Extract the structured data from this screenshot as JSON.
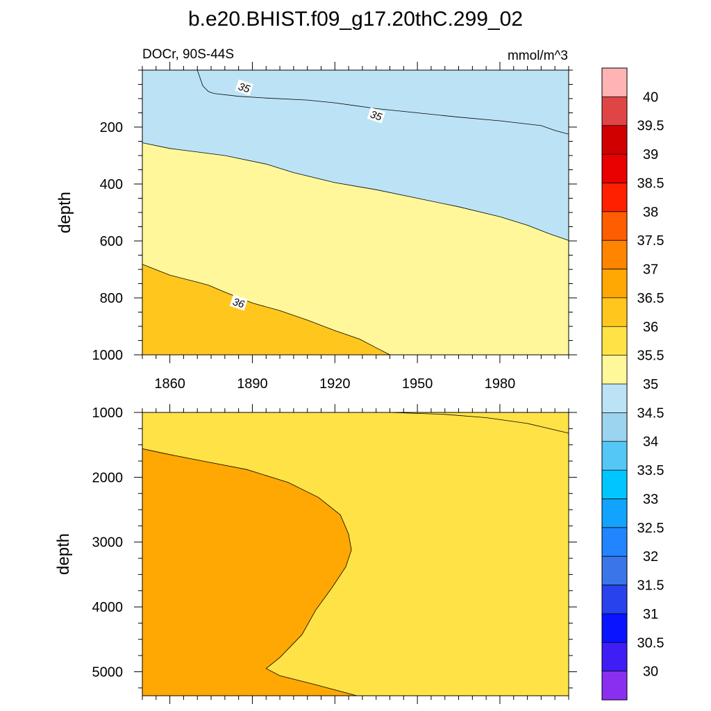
{
  "figure": {
    "title": "b.e20.BHIST.f09_g17.20thC.299_02",
    "left_subtitle": "DOCr, 90S-44S",
    "right_subtitle": "mmol/m^3"
  },
  "chart_data": [
    {
      "type": "heatmap",
      "panel": "upper",
      "title": "",
      "xlabel": "",
      "ylabel": "depth",
      "xlim": [
        1850,
        2005
      ],
      "ylim": [
        1000,
        0
      ],
      "y_reversed": true,
      "x_ticks": [
        1860,
        1890,
        1920,
        1950,
        1980
      ],
      "y_ticks": [
        200,
        400,
        600,
        800,
        1000
      ],
      "contour_labels": [
        {
          "text": "35",
          "x": 1887,
          "y": 62
        },
        {
          "text": "35",
          "x": 1935,
          "y": 160
        },
        {
          "text": "36",
          "x": 1885,
          "y": 818
        }
      ],
      "regions": [
        {
          "range": "34.5-35",
          "color": "#bce3f5",
          "boundary": [
            [
              1870,
              0
            ],
            [
              1872,
              55
            ],
            [
              1874,
              75
            ],
            [
              1876,
              82
            ],
            [
              1885,
              92
            ],
            [
              1895,
              98
            ],
            [
              1910,
              105
            ],
            [
              1920,
              115
            ],
            [
              1935,
              135
            ],
            [
              1950,
              150
            ],
            [
              1965,
              165
            ],
            [
              1980,
              178
            ],
            [
              1995,
              195
            ],
            [
              2000,
              212
            ],
            [
              2005,
              225
            ]
          ]
        },
        {
          "range": "35-35.5",
          "color": "#fff79a",
          "boundary": [
            [
              1850,
              255
            ],
            [
              1860,
              275
            ],
            [
              1880,
              300
            ],
            [
              1895,
              330
            ],
            [
              1905,
              360
            ],
            [
              1920,
              395
            ],
            [
              1935,
              420
            ],
            [
              1950,
              450
            ],
            [
              1965,
              480
            ],
            [
              1980,
              515
            ],
            [
              1990,
              545
            ],
            [
              1998,
              575
            ],
            [
              2005,
              598
            ]
          ]
        },
        {
          "range": "35.5-36",
          "color": "#ffe346",
          "boundary": [
            [
              1850,
              682
            ],
            [
              1860,
              720
            ],
            [
              1870,
              745
            ],
            [
              1874,
              755
            ],
            [
              1880,
              780
            ],
            [
              1890,
              818
            ],
            [
              1900,
              845
            ],
            [
              1910,
              878
            ],
            [
              1920,
              915
            ],
            [
              1929,
              945
            ],
            [
              1935,
              975
            ],
            [
              1940,
              1000
            ]
          ]
        },
        {
          "range": "36-36.5",
          "color": "#ffc71e"
        }
      ]
    },
    {
      "type": "heatmap",
      "panel": "lower",
      "title": "",
      "xlabel": "",
      "ylabel": "depth",
      "xlim": [
        1850,
        2005
      ],
      "ylim": [
        5370,
        1000
      ],
      "y_reversed": true,
      "y_ticks": [
        1000,
        2000,
        3000,
        4000,
        5000
      ],
      "regions": [
        {
          "range": "35.5-36",
          "color": "#ffe346",
          "boundary": [
            [
              1940,
              1000
            ],
            [
              1960,
              1030
            ],
            [
              1975,
              1080
            ],
            [
              1990,
              1170
            ],
            [
              2005,
              1320
            ]
          ]
        },
        {
          "range": "36-36.5",
          "color": "#ffc71e",
          "boundary": [
            [
              1850,
              1560
            ],
            [
              1860,
              1650
            ],
            [
              1872,
              1750
            ],
            [
              1888,
              1880
            ],
            [
              1903,
              2080
            ],
            [
              1914,
              2310
            ],
            [
              1922,
              2580
            ],
            [
              1925,
              2880
            ],
            [
              1926,
              3120
            ],
            [
              1924,
              3380
            ],
            [
              1919,
              3700
            ],
            [
              1913,
              4050
            ],
            [
              1908,
              4430
            ],
            [
              1900,
              4780
            ],
            [
              1895,
              4950
            ],
            [
              1900,
              5060
            ],
            [
              1913,
              5200
            ],
            [
              1928,
              5370
            ]
          ]
        },
        {
          "range": "36.5-37",
          "color": "#ffa703"
        }
      ]
    }
  ],
  "colorbar": {
    "labels": [
      "40",
      "39.5",
      "39",
      "38.5",
      "38",
      "37.5",
      "37",
      "36.5",
      "36",
      "35.5",
      "35",
      "34.5",
      "34",
      "33.5",
      "33",
      "32.5",
      "32",
      "31.5",
      "31",
      "30.5",
      "30"
    ],
    "colors": [
      "#ffb3b3",
      "#e04545",
      "#d00000",
      "#e90000",
      "#ff2000",
      "#ff5e00",
      "#ff8500",
      "#ffa703",
      "#ffc71e",
      "#ffe346",
      "#fff79a",
      "#bce3f5",
      "#9cd4ef",
      "#55c7f7",
      "#00c6ff",
      "#12a3ff",
      "#2185ff",
      "#3a75ea",
      "#2842ee",
      "#0a14ff",
      "#3e1ef5",
      "#8a2ef0"
    ]
  }
}
